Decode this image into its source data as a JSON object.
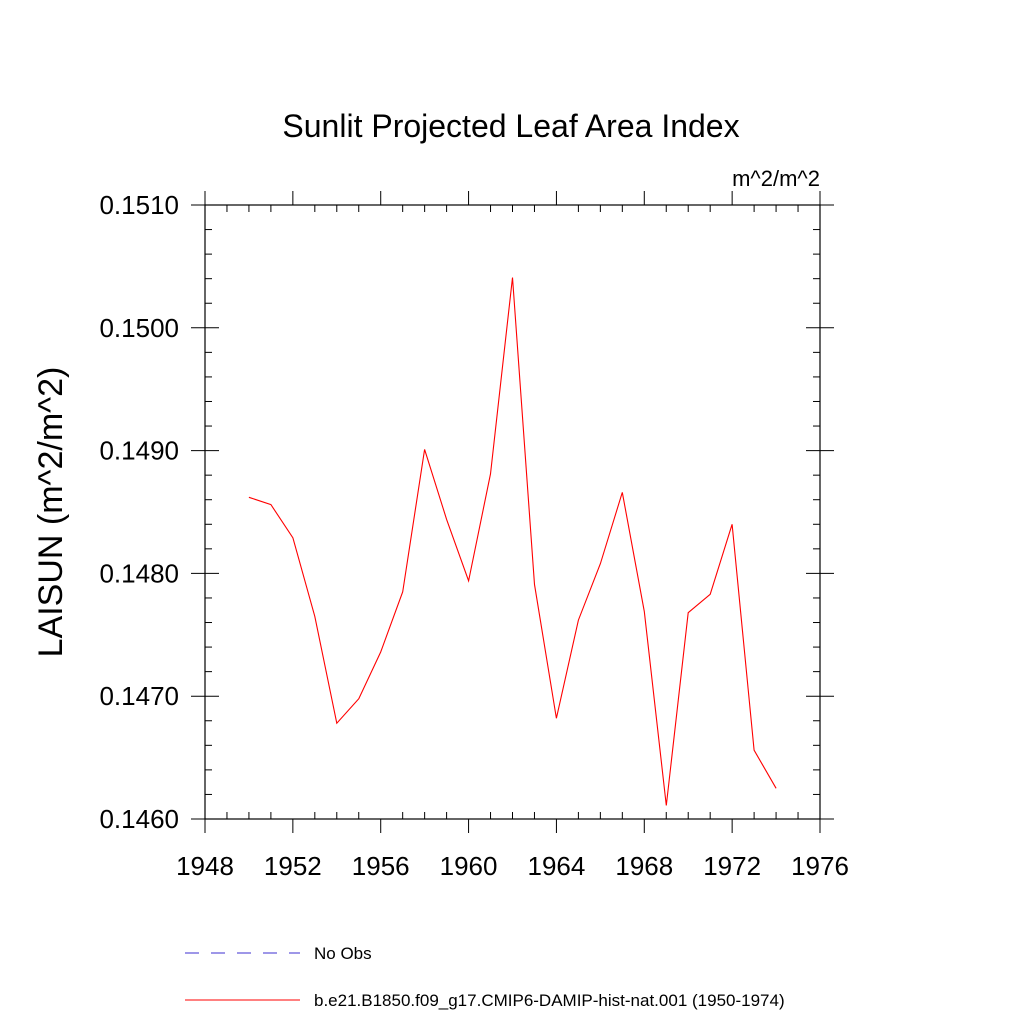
{
  "chart_data": {
    "type": "line",
    "title": "Sunlit Projected Leaf Area Index",
    "units": "m^2/m^2",
    "ylabel": "LAISUN  (m^2/m^2)",
    "xlabel": "",
    "xlim": [
      1948,
      1976
    ],
    "ylim": [
      0.146,
      0.151
    ],
    "x_ticks": [
      "1948",
      "1952",
      "1956",
      "1960",
      "1964",
      "1968",
      "1972",
      "1976"
    ],
    "y_ticks": [
      "0.1460",
      "0.1470",
      "0.1480",
      "0.1490",
      "0.1500",
      "0.1510"
    ],
    "grid": false,
    "legend_position": "bottom",
    "series": [
      {
        "name": "No Obs",
        "color": "#3d2fd0",
        "style": "dashed",
        "x": [],
        "y": []
      },
      {
        "name": "b.e21.B1850.f09_g17.CMIP6-DAMIP-hist-nat.001 (1950-1974)",
        "color": "#ff0000",
        "style": "solid",
        "x": [
          1950,
          1951,
          1952,
          1953,
          1954,
          1955,
          1956,
          1957,
          1958,
          1959,
          1960,
          1961,
          1962,
          1963,
          1964,
          1965,
          1966,
          1967,
          1968,
          1969,
          1970,
          1971,
          1972,
          1973,
          1974
        ],
        "y": [
          0.14862,
          0.14856,
          0.14829,
          0.14765,
          0.14678,
          0.14698,
          0.14736,
          0.14785,
          0.14901,
          0.14844,
          0.14794,
          0.14881,
          0.15041,
          0.14791,
          0.14682,
          0.14762,
          0.14808,
          0.14866,
          0.14769,
          0.14611,
          0.14768,
          0.14783,
          0.1484,
          0.14656,
          0.14625
        ]
      }
    ]
  }
}
